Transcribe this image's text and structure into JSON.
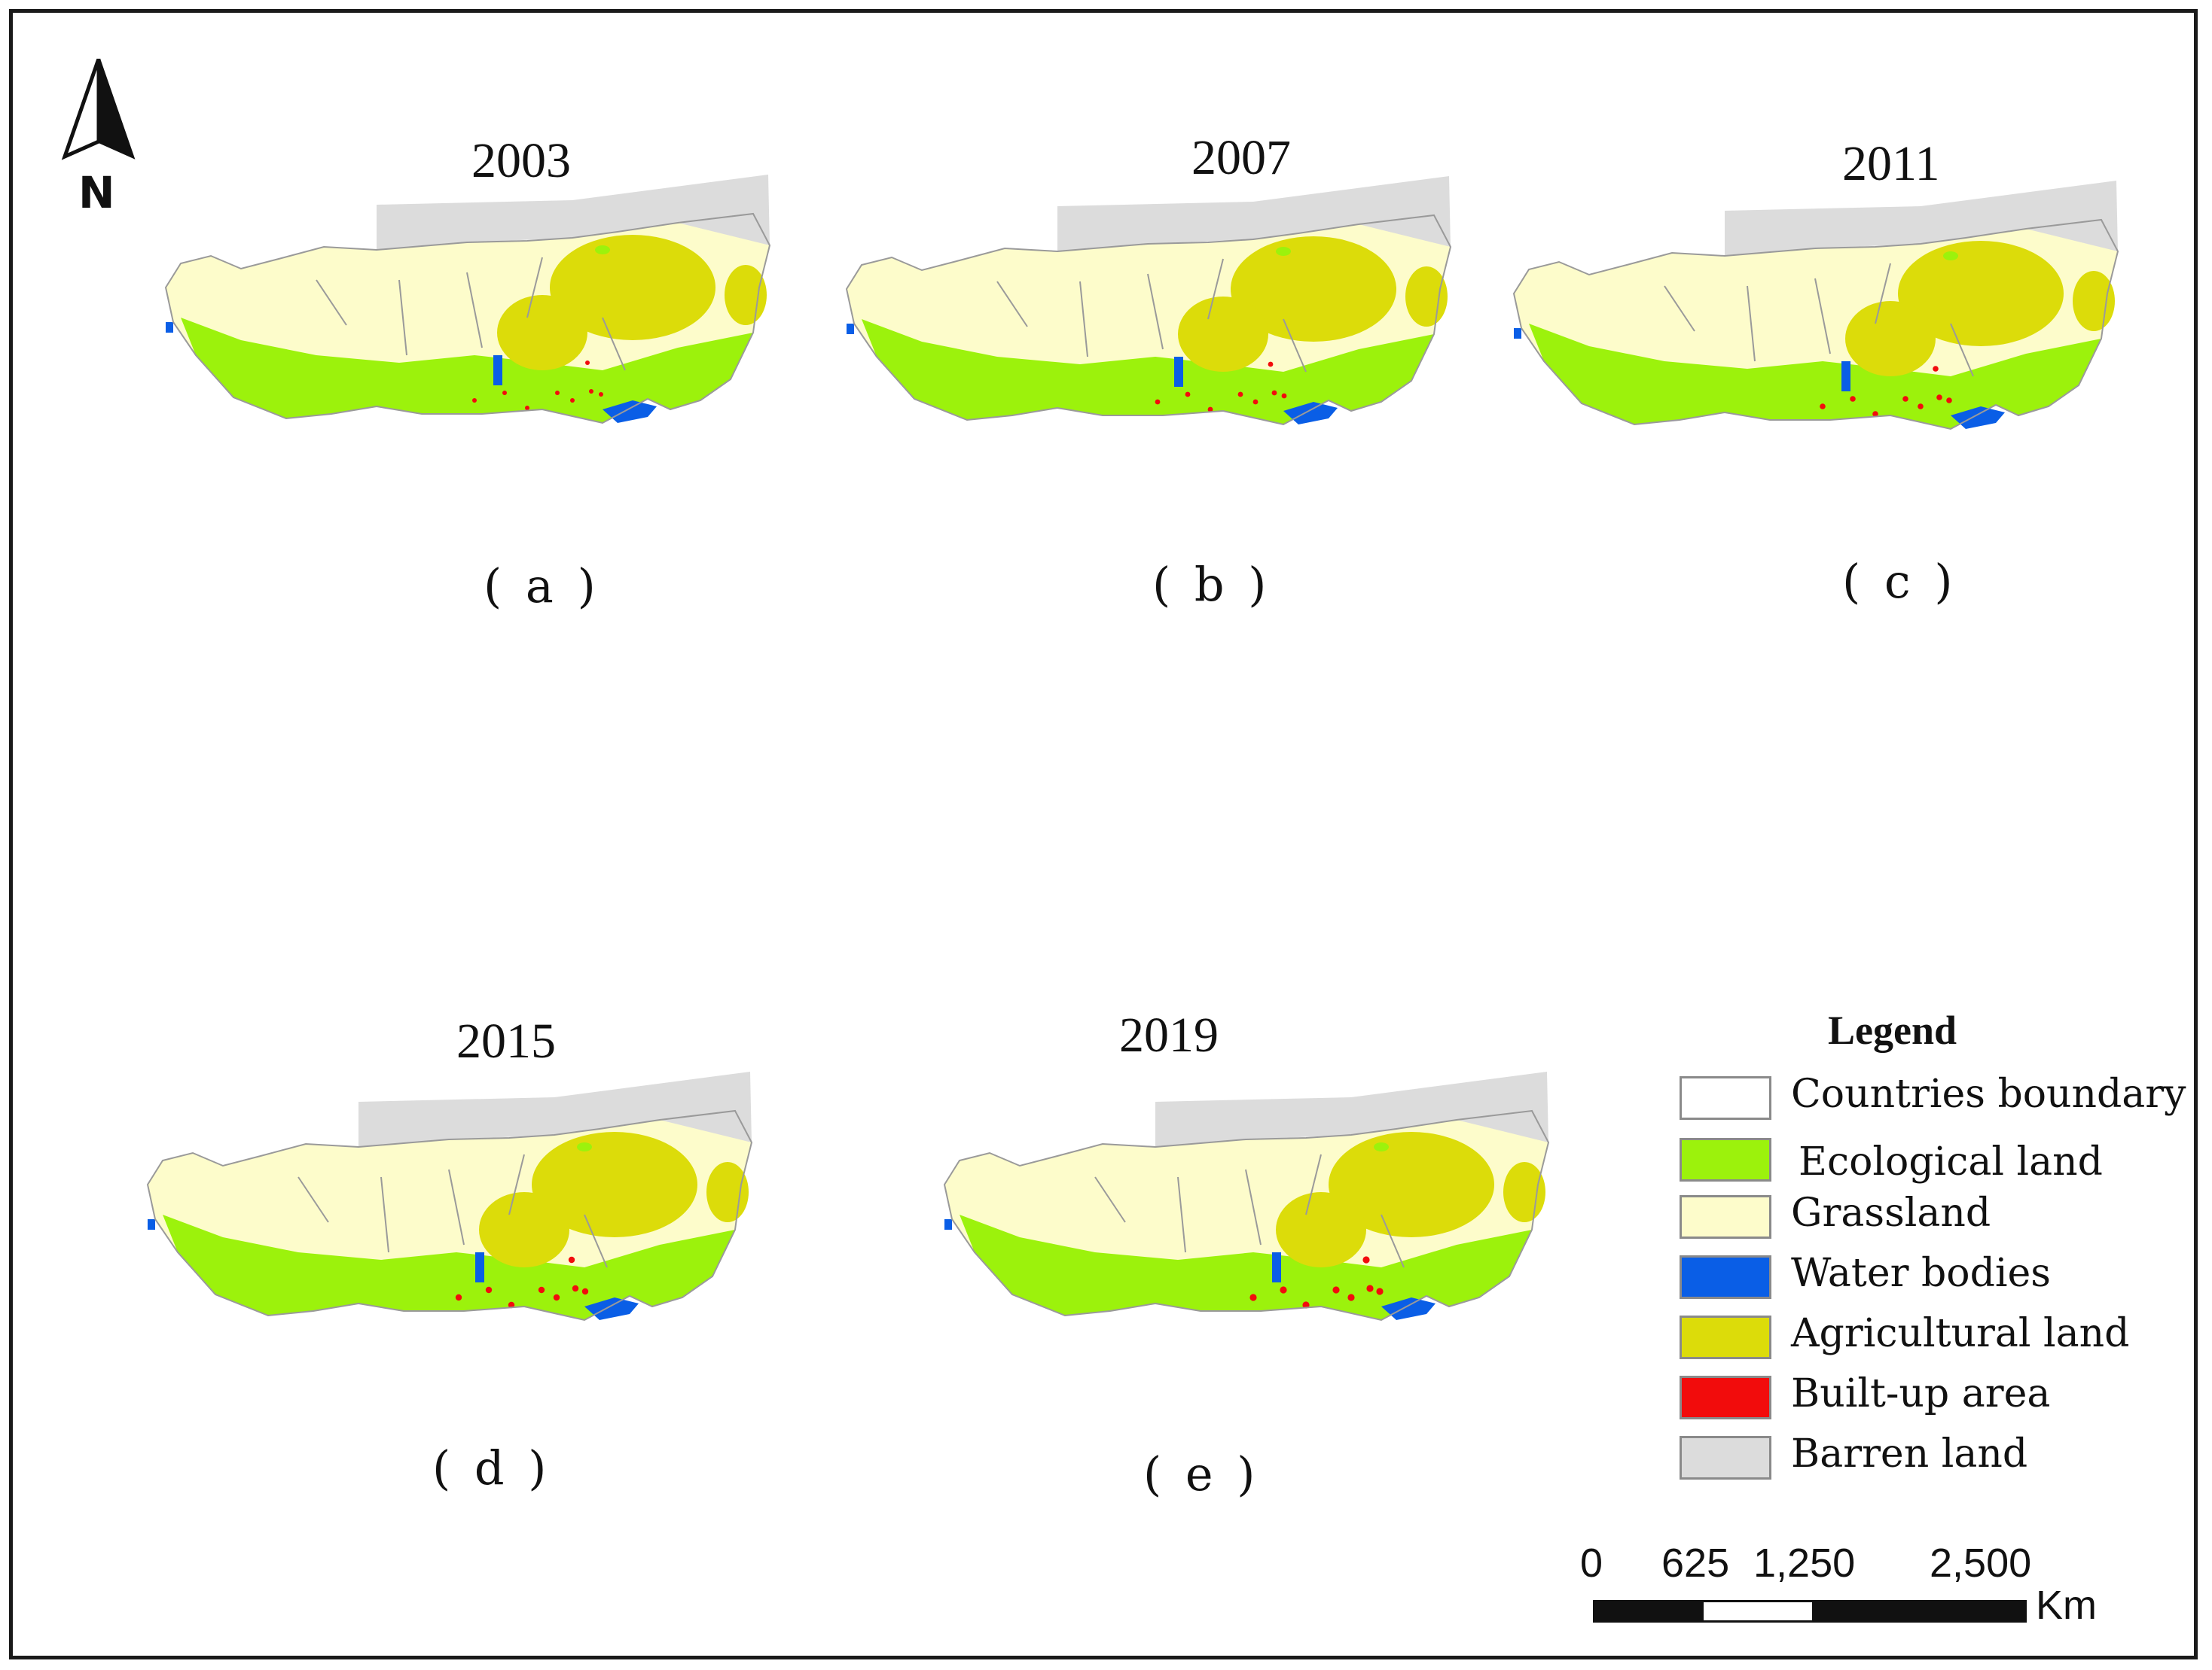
{
  "panels": [
    {
      "year": "2003",
      "label": "( a )"
    },
    {
      "year": "2007",
      "label": "( b )"
    },
    {
      "year": "2011",
      "label": "( c )"
    },
    {
      "year": "2015",
      "label": "( d )"
    },
    {
      "year": "2019",
      "label": "( e )"
    }
  ],
  "north_arrow": {
    "label": "N"
  },
  "legend": {
    "title": "Legend",
    "items": [
      {
        "label": "Countries boundary",
        "color": "#ffffff"
      },
      {
        "label": "Ecological land",
        "color": "#9cf20c"
      },
      {
        "label": "Grassland",
        "color": "#fdfccb"
      },
      {
        "label": "Water bodies",
        "color": "#0a5ee6"
      },
      {
        "label": "Agricultural land",
        "color": "#dcdc0a"
      },
      {
        "label": "Built-up area",
        "color": "#f20c0c"
      },
      {
        "label": "Barren land",
        "color": "#dcdcdc"
      }
    ]
  },
  "scale_bar": {
    "ticks": [
      "0",
      "625",
      "1,250",
      "2,500"
    ],
    "unit": "Km"
  }
}
